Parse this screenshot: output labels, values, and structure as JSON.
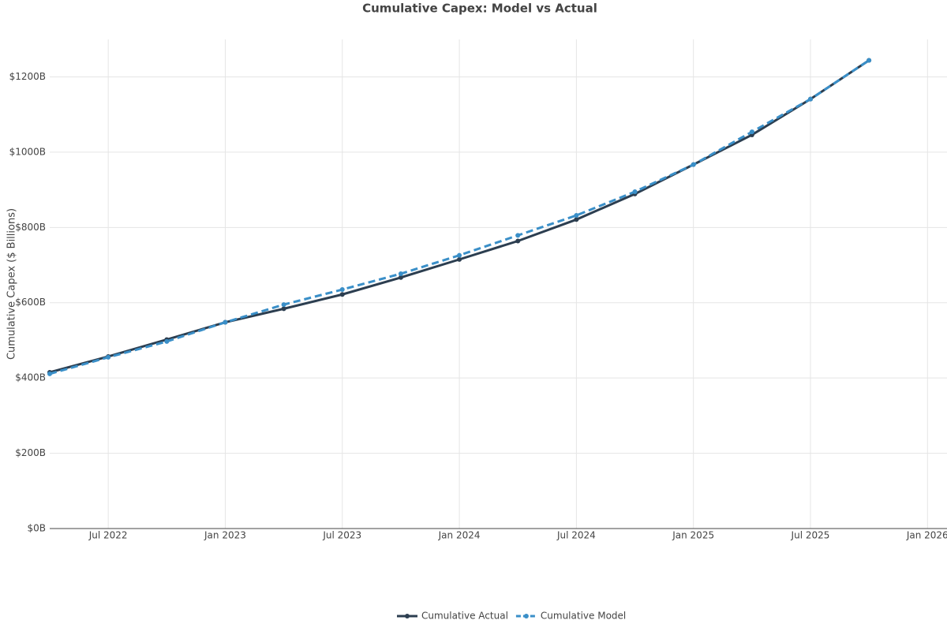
{
  "chart_data": {
    "type": "line",
    "title": "Cumulative Capex: Model vs Actual",
    "y_label": "Cumulative Capex ($ Billions)",
    "x": [
      "2022-04",
      "2022-07",
      "2022-10",
      "2023-01",
      "2023-04",
      "2023-07",
      "2023-10",
      "2024-01",
      "2024-04",
      "2024-07",
      "2024-10",
      "2025-01",
      "2025-04",
      "2025-07",
      "2025-10"
    ],
    "series": [
      {
        "name": "Cumulative Actual",
        "color": "#2c3e50",
        "dash": false,
        "values": [
          415,
          457,
          502,
          548,
          584,
          622,
          667,
          715,
          764,
          821,
          889,
          967,
          1046,
          1141,
          1244
        ]
      },
      {
        "name": "Cumulative Model",
        "color": "#3a8fc8",
        "dash": true,
        "values": [
          411,
          455,
          497,
          548,
          595,
          635,
          677,
          726,
          779,
          832,
          895,
          967,
          1054,
          1141,
          1244
        ]
      }
    ],
    "xlim": [
      "2022-04",
      "2026-02"
    ],
    "xticks": [
      {
        "value": "2022-07",
        "label": "Jul 2022"
      },
      {
        "value": "2023-01",
        "label": "Jan 2023"
      },
      {
        "value": "2023-07",
        "label": "Jul 2023"
      },
      {
        "value": "2024-01",
        "label": "Jan 2024"
      },
      {
        "value": "2024-07",
        "label": "Jul 2024"
      },
      {
        "value": "2025-01",
        "label": "Jan 2025"
      },
      {
        "value": "2025-07",
        "label": "Jul 2025"
      },
      {
        "value": "2026-01",
        "label": "Jan 2026"
      }
    ],
    "ylim": [
      0,
      1310
    ],
    "yticks": [
      {
        "value": 0,
        "label": "$0B"
      },
      {
        "value": 200,
        "label": "$200B"
      },
      {
        "value": 400,
        "label": "$400B"
      },
      {
        "value": 600,
        "label": "$600B"
      },
      {
        "value": 800,
        "label": "$800B"
      },
      {
        "value": 1000,
        "label": "$1000B"
      },
      {
        "value": 1200,
        "label": "$1200B"
      }
    ],
    "grid": true,
    "legend": "bottom"
  }
}
